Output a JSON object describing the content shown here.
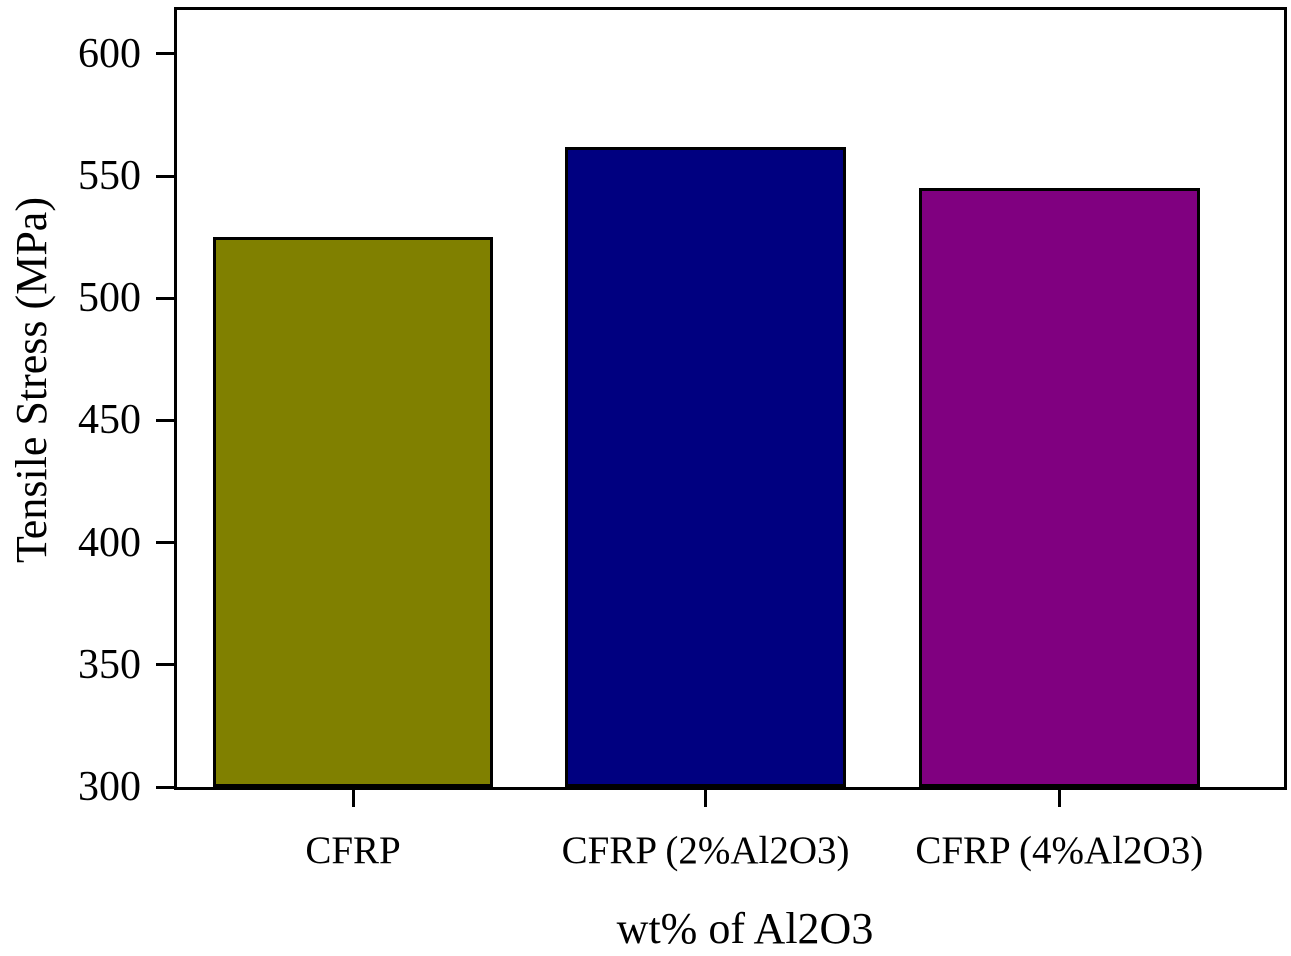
{
  "chart_data": {
    "type": "bar",
    "title": "",
    "xlabel": "wt% of Al2O3",
    "ylabel": "Tensile Stress (MPa)",
    "categories": [
      "CFRP",
      "CFRP (2%Al2O3)",
      "CFRP (4%Al2O3)"
    ],
    "values": [
      525,
      562,
      545
    ],
    "series": [
      {
        "name": "Tensile Stress",
        "values": [
          525,
          562,
          545
        ]
      }
    ],
    "yticks": [
      300,
      350,
      400,
      450,
      500,
      550,
      600
    ],
    "ylim": [
      300,
      618
    ],
    "grid": false,
    "legend_position": "none",
    "bar_colors": [
      "#808000",
      "#000080",
      "#800080"
    ],
    "bar_edge_color": "#000000",
    "axis_color": "#000000",
    "background_color": "#FFFFFF"
  }
}
